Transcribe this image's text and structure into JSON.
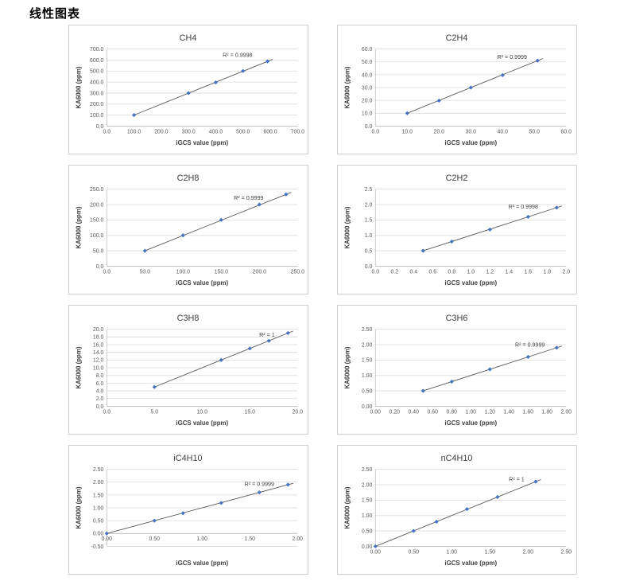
{
  "page": {
    "title": "线性图表"
  },
  "colors": {
    "marker": "#4472c4",
    "trendline": "#595959",
    "gridline": "#d9d9d9",
    "axis_line": "#bfbfbf",
    "tick_text": "#595959",
    "title_text": "#3f3f3f",
    "border": "#cfcfcf"
  },
  "chart_data": [
    {
      "type": "scatter",
      "title": "CH4",
      "xlabel": "iGCS value (ppm)",
      "ylabel": "KA6000 (ppm)",
      "r2_label": "R² = 0.9998",
      "x": [
        100,
        300,
        400,
        500,
        590
      ],
      "y": [
        100,
        300,
        397,
        501,
        588
      ],
      "xlim": [
        0,
        700
      ],
      "xstep": 100,
      "ylim": [
        0,
        700
      ],
      "ystep": 100,
      "tick_decimals": 1,
      "r2_at": [
        480,
        645
      ],
      "grid": "horizontal",
      "legend": "none"
    },
    {
      "type": "scatter",
      "title": "C2H4",
      "xlabel": "iGCS value (ppm)",
      "ylabel": "KA6000 (ppm)",
      "r2_label": "R² = 0.9999",
      "x": [
        10,
        20,
        30,
        40,
        51
      ],
      "y": [
        10,
        19.8,
        30,
        39.7,
        51
      ],
      "xlim": [
        0,
        60
      ],
      "xstep": 10,
      "ylim": [
        0,
        60
      ],
      "ystep": 10,
      "tick_decimals": 1,
      "r2_at": [
        43,
        54
      ],
      "grid": "horizontal",
      "legend": "none"
    },
    {
      "type": "scatter",
      "title": "C2H8",
      "xlabel": "iGCS value (ppm)",
      "ylabel": "KA6000 (ppm)",
      "r2_label": "R² = 0.9999",
      "x": [
        50,
        100,
        150,
        200,
        235
      ],
      "y": [
        50,
        100,
        150,
        200,
        233
      ],
      "xlim": [
        0,
        250
      ],
      "xstep": 50,
      "ylim": [
        0,
        250
      ],
      "ystep": 50,
      "tick_decimals": 1,
      "r2_at": [
        186,
        222
      ],
      "grid": "horizontal",
      "legend": "none"
    },
    {
      "type": "scatter",
      "title": "C2H2",
      "xlabel": "iGCS value (ppm)",
      "ylabel": "KA6000 (ppm)",
      "r2_label": "R² = 0.9998",
      "x": [
        0.5,
        0.8,
        1.2,
        1.6,
        1.9
      ],
      "y": [
        0.5,
        0.8,
        1.19,
        1.6,
        1.9
      ],
      "xlim": [
        0,
        2.0
      ],
      "xstep": 0.2,
      "ylim": [
        0,
        2.5
      ],
      "ystep": 0.5,
      "tick_decimals": 1,
      "r2_at": [
        1.55,
        1.93
      ],
      "grid": "horizontal",
      "legend": "none"
    },
    {
      "type": "scatter",
      "title": "C3H8",
      "xlabel": "iGCS value (ppm)",
      "ylabel": "KA6000 (ppm)",
      "r2_label": "R² = 1",
      "x": [
        5,
        12,
        15,
        17,
        19
      ],
      "y": [
        5,
        12,
        15,
        17,
        19
      ],
      "xlim": [
        0,
        20
      ],
      "xstep": 5,
      "ylim": [
        0,
        20
      ],
      "ystep": 2,
      "tick_decimals": 1,
      "r2_at": [
        16.8,
        18.6
      ],
      "grid": "horizontal",
      "legend": "none"
    },
    {
      "type": "scatter",
      "title": "C3H6",
      "xlabel": "iGCS value (ppm)",
      "ylabel": "KA6000 (ppm)",
      "r2_label": "R² = 0.9999",
      "x": [
        0.5,
        0.8,
        1.2,
        1.6,
        1.9
      ],
      "y": [
        0.5,
        0.8,
        1.2,
        1.6,
        1.9
      ],
      "xlim": [
        0,
        2.0
      ],
      "xstep": 0.2,
      "ylim": [
        0,
        2.5
      ],
      "ystep": 0.5,
      "tick_decimals": 2,
      "r2_at": [
        1.62,
        2.0
      ],
      "grid": "horizontal",
      "legend": "none"
    },
    {
      "type": "scatter",
      "title": "iC4H10",
      "xlabel": "iGCS value (ppm)",
      "ylabel": "KA6000 (ppm)",
      "r2_label": "R² = 0.9999",
      "x": [
        0,
        0.5,
        0.8,
        1.2,
        1.6,
        1.9
      ],
      "y": [
        0,
        0.5,
        0.79,
        1.19,
        1.6,
        1.9
      ],
      "xlim": [
        0,
        2.0
      ],
      "xstep": 0.5,
      "ylim": [
        -0.5,
        2.5
      ],
      "ystep": 0.5,
      "tick_decimals": 2,
      "r2_at": [
        1.6,
        1.93
      ],
      "grid": "horizontal",
      "legend": "none"
    },
    {
      "type": "scatter",
      "title": "nC4H10",
      "xlabel": "iGCS value (ppm)",
      "ylabel": "KA6000 (ppm)",
      "r2_label": "R² = 1",
      "x": [
        0,
        0.5,
        0.8,
        1.2,
        1.6,
        2.1
      ],
      "y": [
        0,
        0.5,
        0.8,
        1.21,
        1.6,
        2.1
      ],
      "xlim": [
        0,
        2.5
      ],
      "xstep": 0.5,
      "ylim": [
        0,
        2.5
      ],
      "ystep": 0.5,
      "tick_decimals": 2,
      "r2_at": [
        1.85,
        2.18
      ],
      "grid": "horizontal",
      "legend": "none"
    }
  ]
}
